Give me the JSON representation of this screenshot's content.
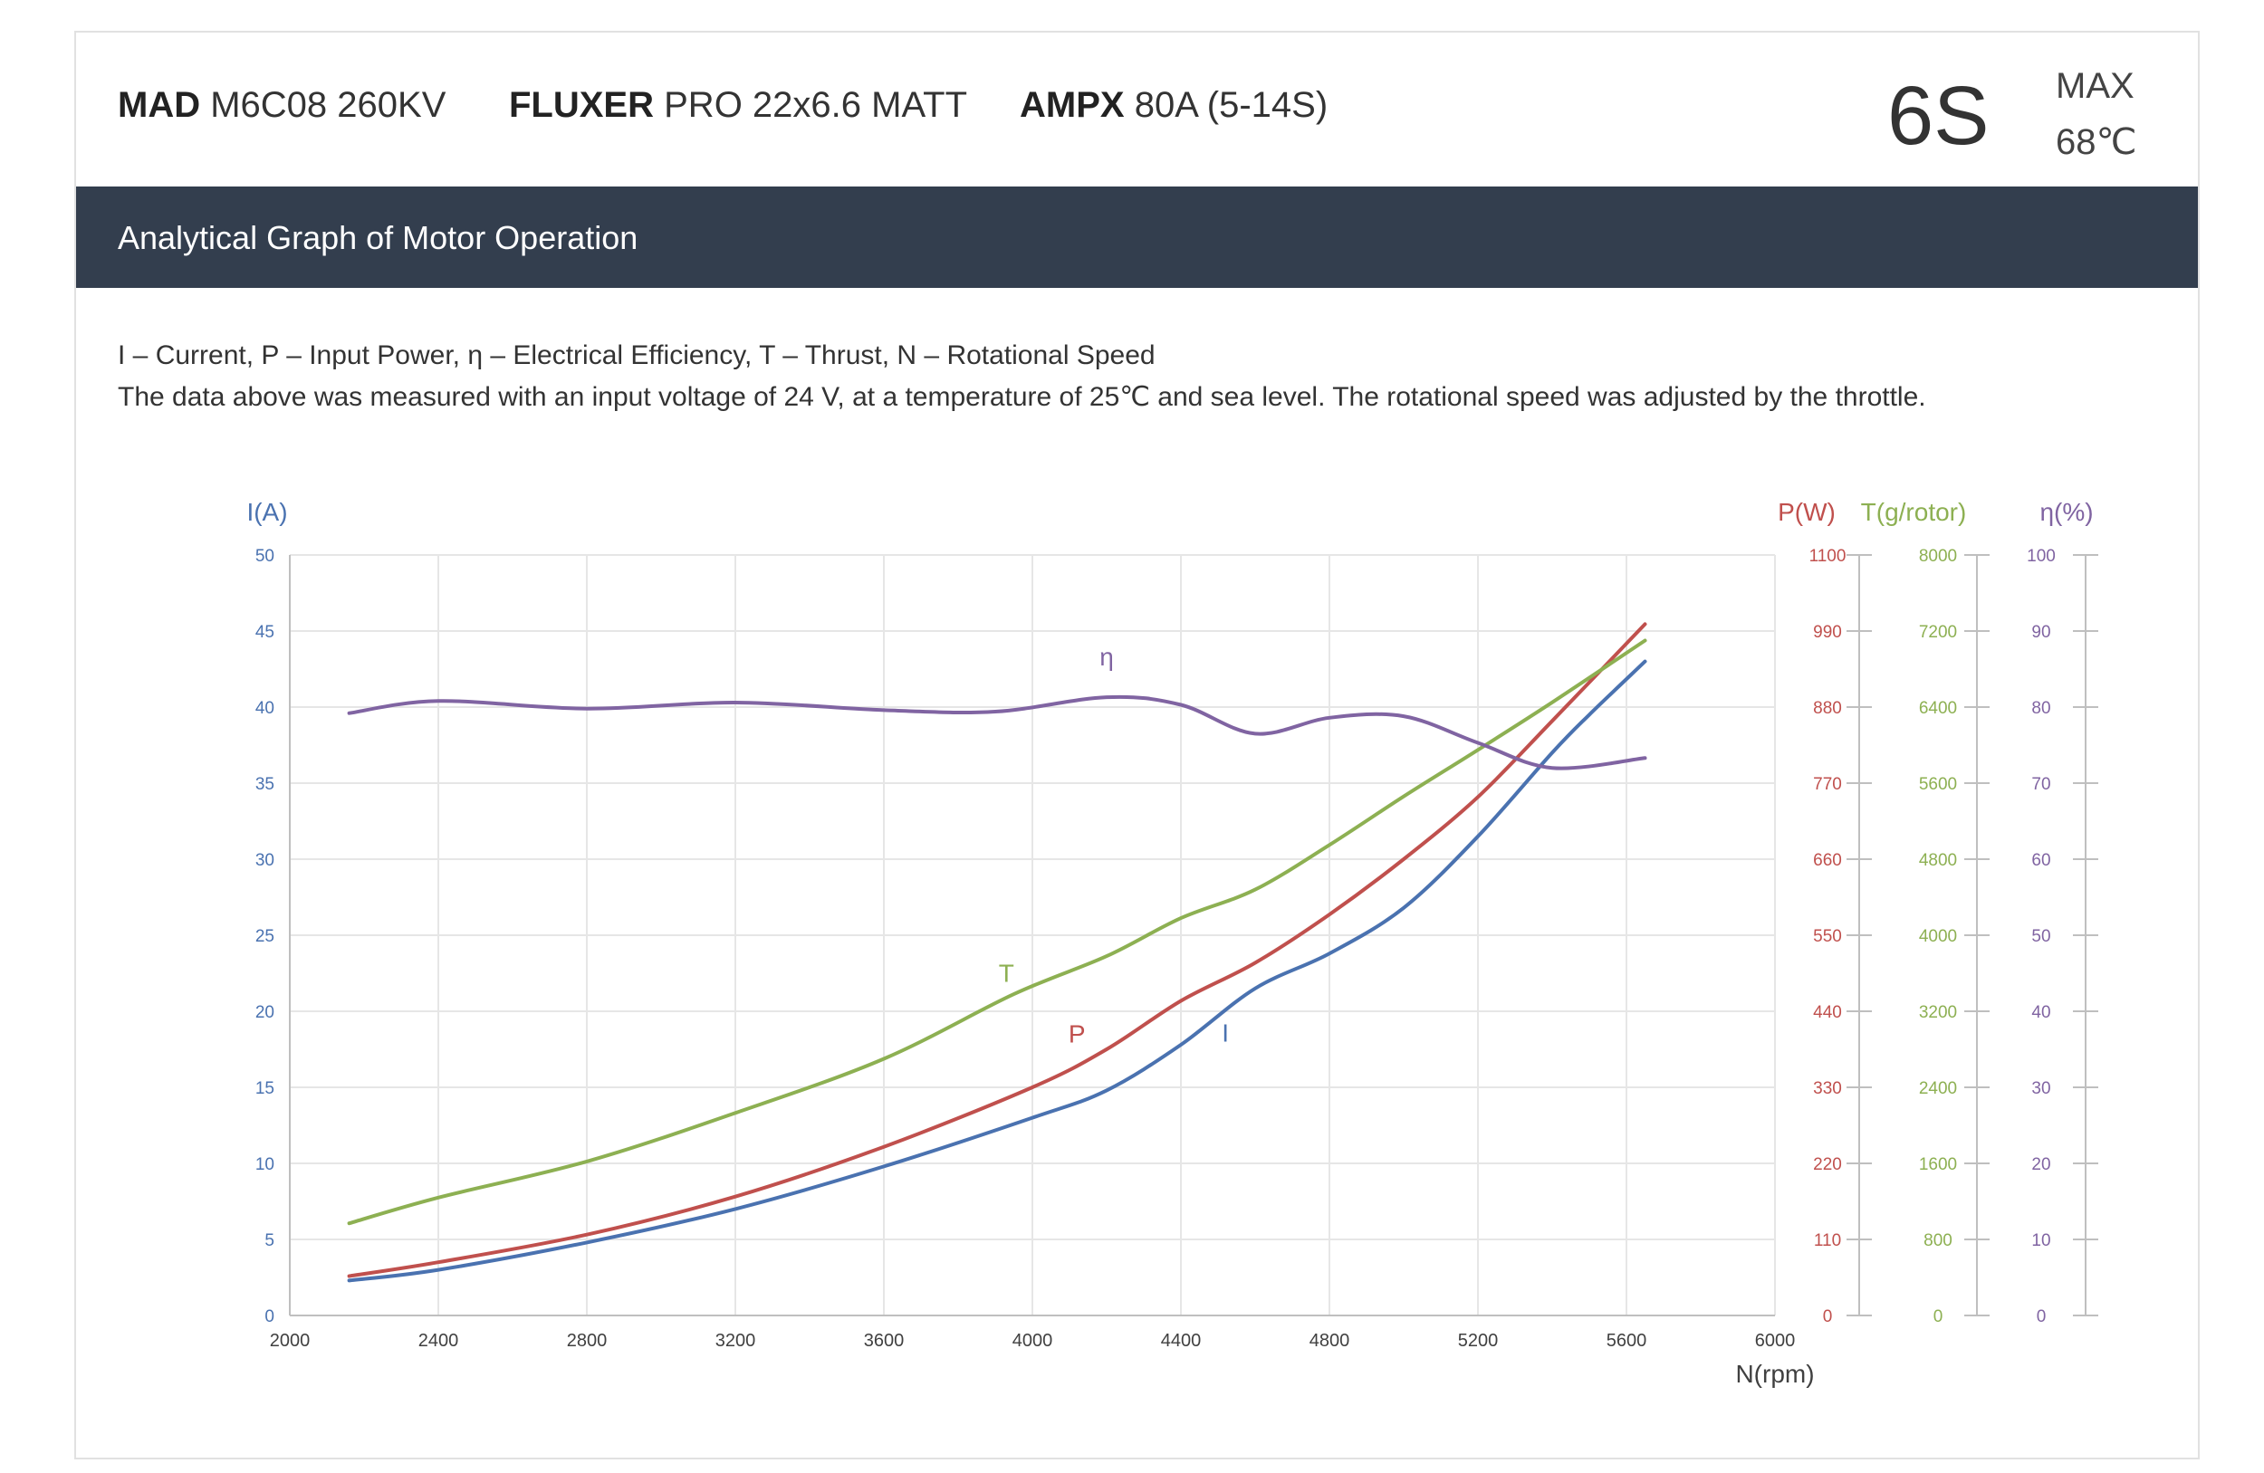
{
  "header": {
    "motor_brand": "MAD",
    "motor_model": "M6C08 260KV",
    "prop_brand": "FLUXER",
    "prop_model": "PRO 22x6.6 MATT",
    "esc_brand": "AMPX",
    "esc_model": "80A (5-14S)",
    "cells": "6S",
    "max_label": "MAX",
    "max_temp": "68℃"
  },
  "banner": {
    "title": "Analytical Graph of Motor Operation"
  },
  "legend": {
    "line1": "I – Current, P – Input Power, η – Electrical Efficiency, T – Thrust,   N – Rotational Speed",
    "line2": "The data above was measured with an input voltage of 24 V, at a temperature of 25℃ and sea level. The rotational speed was adjusted by the throttle."
  },
  "colors": {
    "current": "#4a72b0",
    "power": "#c0504d",
    "thrust": "#8db052",
    "efficiency": "#8064a2",
    "banner": "#333e4e",
    "grid": "#e6e6e6"
  },
  "chart_data": {
    "type": "line",
    "xlabel": "N(rpm)",
    "xlim": [
      2000,
      6000
    ],
    "x_ticks": [
      "2000",
      "2400",
      "2800",
      "3200",
      "3600",
      "4000",
      "4400",
      "4800",
      "5200",
      "5600",
      "6000"
    ],
    "grid": true,
    "axes": {
      "I": {
        "label": "I(A)",
        "range": [
          0,
          50
        ],
        "ticks": [
          "0",
          "5",
          "10",
          "15",
          "20",
          "25",
          "30",
          "35",
          "40",
          "45",
          "50"
        ]
      },
      "P": {
        "label": "P(W)",
        "range": [
          0,
          1100
        ],
        "ticks": [
          "0",
          "110",
          "220",
          "330",
          "440",
          "550",
          "660",
          "770",
          "880",
          "990",
          "1100"
        ]
      },
      "T": {
        "label": "T(g/rotor)",
        "range": [
          0,
          8000
        ],
        "ticks": [
          "0",
          "800",
          "1600",
          "2400",
          "3200",
          "4000",
          "4800",
          "5600",
          "6400",
          "7200",
          "8000"
        ]
      },
      "eta": {
        "label": "η(%)",
        "range": [
          0,
          100
        ],
        "ticks": [
          "0",
          "10",
          "20",
          "30",
          "40",
          "50",
          "60",
          "70",
          "80",
          "90",
          "100"
        ]
      }
    },
    "series": [
      {
        "name": "I",
        "axis": "I",
        "color": "#4a72b0",
        "x": [
          2160,
          2400,
          2800,
          3200,
          3600,
          4000,
          4200,
          4400,
          4600,
          4800,
          5000,
          5200,
          5400,
          5500,
          5650
        ],
        "y": [
          2.3,
          3.0,
          4.8,
          7.0,
          9.8,
          13.0,
          14.8,
          17.8,
          21.5,
          23.8,
          26.8,
          31.5,
          37.0,
          39.5,
          43.0
        ]
      },
      {
        "name": "P",
        "axis": "P",
        "color": "#c0504d",
        "x": [
          2160,
          2400,
          2800,
          3200,
          3600,
          4000,
          4200,
          4400,
          4600,
          4800,
          5000,
          5200,
          5400,
          5650
        ],
        "y": [
          57,
          77,
          117,
          172,
          244,
          330,
          385,
          455,
          510,
          580,
          660,
          750,
          860,
          1000
        ]
      },
      {
        "name": "T",
        "axis": "T",
        "color": "#8db052",
        "x": [
          2160,
          2400,
          2800,
          3200,
          3600,
          3950,
          4200,
          4400,
          4600,
          4800,
          5000,
          5200,
          5400,
          5650
        ],
        "y": [
          970,
          1240,
          1620,
          2130,
          2700,
          3380,
          3780,
          4180,
          4480,
          4950,
          5460,
          5950,
          6450,
          7100
        ]
      },
      {
        "name": "η",
        "axis": "eta",
        "color": "#8064a2",
        "x": [
          2160,
          2400,
          2800,
          3200,
          3600,
          3900,
          4200,
          4400,
          4600,
          4800,
          5000,
          5200,
          5400,
          5650
        ],
        "y": [
          79.2,
          80.8,
          79.8,
          80.6,
          79.6,
          79.4,
          81.3,
          80.3,
          76.5,
          78.6,
          78.8,
          75.3,
          72.0,
          73.3
        ]
      }
    ],
    "annotations": [
      {
        "text": "I",
        "series": "I",
        "x": 4520,
        "y": 18.0
      },
      {
        "text": "P",
        "series": "P",
        "x": 4120,
        "y": 395
      },
      {
        "text": "T",
        "series": "T",
        "x": 3930,
        "y": 3510
      },
      {
        "text": "η",
        "series": "η",
        "x": 4200,
        "y": 85.5
      }
    ]
  }
}
